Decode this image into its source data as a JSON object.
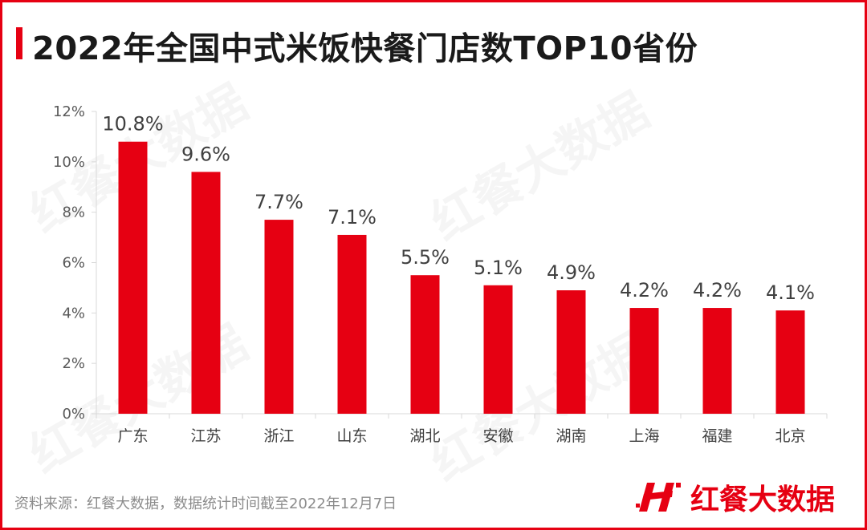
{
  "title": "2022年全国中式米饭快餐门店数TOP10省份",
  "source": "资料来源：红餐大数据，数据统计时间截至2022年12月7日",
  "brand": {
    "name": "红餐大数据",
    "logo_icon": "hongcan-logo-icon",
    "watermark_text": "红餐大数据"
  },
  "colors": {
    "accent": "#e60012",
    "axis": "#d9d9d9",
    "text": "#404040"
  },
  "chart_data": {
    "type": "bar",
    "title": "2022年全国中式米饭快餐门店数TOP10省份",
    "xlabel": "",
    "ylabel": "",
    "categories": [
      "广东",
      "江苏",
      "浙江",
      "山东",
      "湖北",
      "安徽",
      "湖南",
      "上海",
      "福建",
      "北京"
    ],
    "values": [
      10.8,
      9.6,
      7.7,
      7.1,
      5.5,
      5.1,
      4.9,
      4.2,
      4.2,
      4.1
    ],
    "data_labels": [
      "10.8%",
      "9.6%",
      "7.7%",
      "7.1%",
      "5.5%",
      "5.1%",
      "4.9%",
      "4.2%",
      "4.2%",
      "4.1%"
    ],
    "ylim": [
      0,
      12
    ],
    "yticks": [
      0,
      2,
      4,
      6,
      8,
      10,
      12
    ],
    "ytick_labels": [
      "0%",
      "2%",
      "4%",
      "6%",
      "8%",
      "10%",
      "12%"
    ],
    "grid": false,
    "legend": "none"
  }
}
